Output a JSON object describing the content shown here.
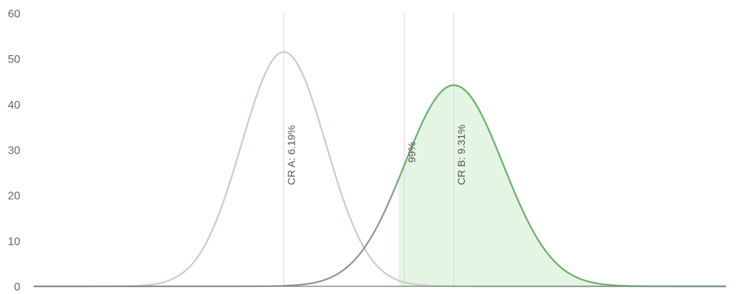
{
  "chart_data": {
    "type": "area",
    "title": "",
    "xlabel": "",
    "ylabel": "",
    "ylim": [
      0,
      60
    ],
    "y_ticks": [
      0,
      10,
      20,
      30,
      40,
      50,
      60
    ],
    "grid": false,
    "series": [
      {
        "name": "CR A",
        "mean": 6.19,
        "peak": 51.5,
        "color": "#c7cfc7",
        "filled": false
      },
      {
        "name": "CR B",
        "mean": 9.31,
        "peak": 44.2,
        "color": "#69b36c",
        "fill": "#dff3df",
        "filled": true
      }
    ],
    "xlim": [
      1.6,
      14.3
    ],
    "sd_a": 0.775,
    "sd_b": 0.903,
    "markers": [
      {
        "x": 6.19,
        "label": "CR A: 6.19%"
      },
      {
        "x": 8.4,
        "label": "99%"
      },
      {
        "x": 9.31,
        "label": "CR B: 9.31%"
      }
    ],
    "shaded_from": 8.3
  }
}
